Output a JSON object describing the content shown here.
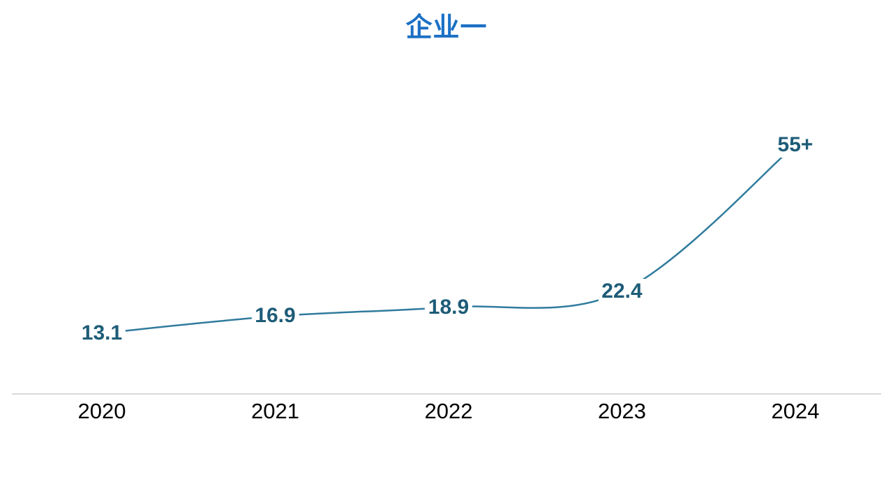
{
  "chart_data": {
    "type": "line",
    "title": "企业一",
    "categories": [
      "2020",
      "2021",
      "2022",
      "2023",
      "2024"
    ],
    "series": [
      {
        "name": "企业一",
        "values": [
          13.1,
          16.9,
          18.9,
          22.4,
          55
        ],
        "point_labels": [
          "13.1",
          "16.9",
          "18.9",
          "22.4",
          "55+"
        ]
      }
    ],
    "xlabel": "",
    "ylabel": "",
    "smooth_line": true,
    "grid": false,
    "legend": "none",
    "y_axis_visible": false,
    "colors": {
      "title": "#1B70C4",
      "line": "#2F7B9D",
      "data_label": "#1E5C78",
      "x_axis_line": "#D9D9D9",
      "x_tick_label": "#000000",
      "background": "#FFFFFF"
    }
  }
}
